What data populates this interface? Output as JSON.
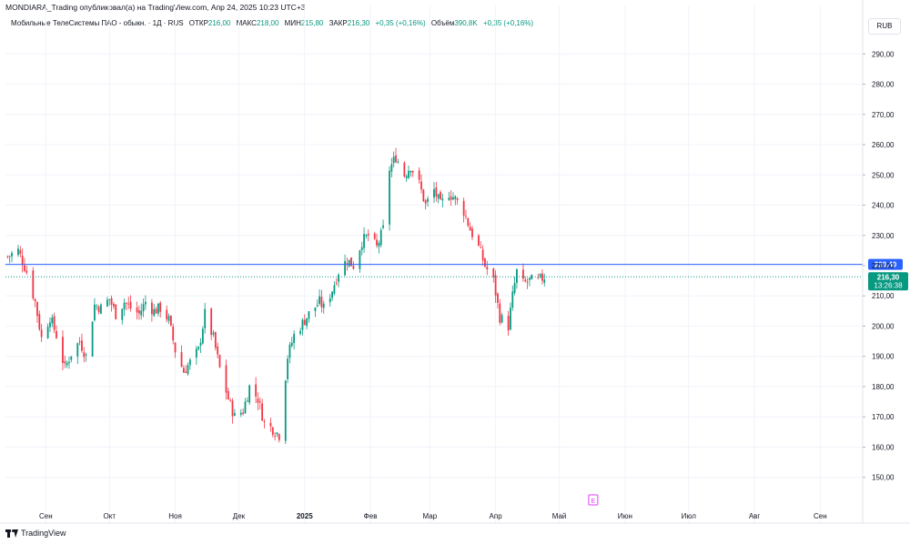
{
  "header": {
    "publisher_line": "MONDIARA_Trading опубликовал(а) на TradingView.com, Апр 24, 2025 10:23 UTC+3"
  },
  "legend": {
    "symbol": "Мобильные ТелеСистемы ПАО - обыкн. · 1Д · RUS",
    "open_label": "ОТКР",
    "open_value": "216,00",
    "high_label": "МАКС",
    "high_value": "218,00",
    "low_label": "МИН",
    "low_value": "215,80",
    "close_label": "ЗАКР",
    "close_value": "216,30",
    "change": "+0,35 (+0,16%)",
    "volume_label": "Объём",
    "volume_value": "390,8K",
    "volume_change": "+0,35 (+0,16%)"
  },
  "currency": "RUB",
  "footer": {
    "brand": "TradingView"
  },
  "colors": {
    "up": "#089981",
    "down": "#f23645",
    "hline": "#2962ff",
    "last_price": "#089981",
    "grid": "#f0f3fa",
    "event_marker": "#e040fb"
  },
  "chart_data": {
    "type": "candlestick",
    "ylim": [
      143,
      297
    ],
    "y_ticks": [
      150,
      160,
      170,
      180,
      190,
      200,
      210,
      220,
      230,
      240,
      250,
      260,
      270,
      280,
      290
    ],
    "y_tick_labels": [
      "150,00",
      "160,00",
      "170,00",
      "180,00",
      "190,00",
      "200,00",
      "210,00",
      "220,00",
      "230,00",
      "240,00",
      "250,00",
      "260,00",
      "270,00",
      "280,00",
      "290,00"
    ],
    "x_labels": [
      {
        "label": "Сен",
        "date": "2024-09-01"
      },
      {
        "label": "Окт",
        "date": "2024-10-01"
      },
      {
        "label": "Ноя",
        "date": "2024-11-01"
      },
      {
        "label": "Дек",
        "date": "2024-12-01"
      },
      {
        "label": "2025",
        "date": "2025-01-01",
        "bold": true
      },
      {
        "label": "Фев",
        "date": "2025-02-01"
      },
      {
        "label": "Мар",
        "date": "2025-03-01"
      },
      {
        "label": "Апр",
        "date": "2025-04-01"
      },
      {
        "label": "Май",
        "date": "2025-05-01"
      },
      {
        "label": "Июн",
        "date": "2025-06-01"
      },
      {
        "label": "Июл",
        "date": "2025-07-01"
      },
      {
        "label": "Авг",
        "date": "2025-08-01"
      },
      {
        "label": "Сен",
        "date": "2025-09-01"
      }
    ],
    "date_range": [
      "2024-08-13",
      "2025-09-21"
    ],
    "horizontal_line": {
      "value": 220.4,
      "label": "220,40"
    },
    "last_price": {
      "value": 216.3,
      "label": "216,30",
      "countdown": "13:26:38"
    },
    "event_marker": {
      "label": "E",
      "date": "2025-05-17"
    },
    "close_path": [
      [
        "2024-08-14",
        223
      ],
      [
        "2024-08-19",
        225
      ],
      [
        "2024-08-23",
        218
      ],
      [
        "2024-08-27",
        208
      ],
      [
        "2024-08-30",
        196
      ],
      [
        "2024-09-03",
        203
      ],
      [
        "2024-09-06",
        197
      ],
      [
        "2024-09-10",
        186
      ],
      [
        "2024-09-13",
        191
      ],
      [
        "2024-09-17",
        195
      ],
      [
        "2024-09-20",
        190
      ],
      [
        "2024-09-24",
        207
      ],
      [
        "2024-09-27",
        206
      ],
      [
        "2024-10-01",
        209
      ],
      [
        "2024-10-04",
        204
      ],
      [
        "2024-10-08",
        208
      ],
      [
        "2024-10-11",
        206
      ],
      [
        "2024-10-15",
        204
      ],
      [
        "2024-10-18",
        208
      ],
      [
        "2024-10-22",
        205
      ],
      [
        "2024-10-25",
        206
      ],
      [
        "2024-10-29",
        202
      ],
      [
        "2024-11-01",
        192
      ],
      [
        "2024-11-05",
        185
      ],
      [
        "2024-11-08",
        188
      ],
      [
        "2024-11-12",
        192
      ],
      [
        "2024-11-15",
        204
      ],
      [
        "2024-11-19",
        196
      ],
      [
        "2024-11-22",
        186
      ],
      [
        "2024-11-26",
        176
      ],
      [
        "2024-11-29",
        170
      ],
      [
        "2024-12-03",
        172
      ],
      [
        "2024-12-06",
        180
      ],
      [
        "2024-12-10",
        176
      ],
      [
        "2024-12-13",
        168
      ],
      [
        "2024-12-17",
        166
      ],
      [
        "2024-12-20",
        164
      ],
      [
        "2024-12-24",
        190
      ],
      [
        "2024-12-27",
        197
      ],
      [
        "2025-01-03",
        204
      ],
      [
        "2025-01-08",
        208
      ],
      [
        "2025-01-10",
        206
      ],
      [
        "2025-01-14",
        212
      ],
      [
        "2025-01-17",
        218
      ],
      [
        "2025-01-21",
        222
      ],
      [
        "2025-01-24",
        220
      ],
      [
        "2025-01-28",
        228
      ],
      [
        "2025-01-31",
        230
      ],
      [
        "2025-02-04",
        226
      ],
      [
        "2025-02-07",
        232
      ],
      [
        "2025-02-10",
        252
      ],
      [
        "2025-02-13",
        256
      ],
      [
        "2025-02-17",
        250
      ],
      [
        "2025-02-20",
        253
      ],
      [
        "2025-02-24",
        247
      ],
      [
        "2025-02-27",
        240
      ],
      [
        "2025-03-03",
        245
      ],
      [
        "2025-03-06",
        240
      ],
      [
        "2025-03-10",
        244
      ],
      [
        "2025-03-13",
        242
      ],
      [
        "2025-03-17",
        238
      ],
      [
        "2025-03-20",
        232
      ],
      [
        "2025-03-24",
        226
      ],
      [
        "2025-03-27",
        220
      ],
      [
        "2025-03-31",
        215
      ],
      [
        "2025-04-03",
        203
      ],
      [
        "2025-04-07",
        200
      ],
      [
        "2025-04-09",
        210
      ],
      [
        "2025-04-11",
        218
      ],
      [
        "2025-04-14",
        214
      ],
      [
        "2025-04-17",
        215
      ],
      [
        "2025-04-21",
        215
      ],
      [
        "2025-04-24",
        216.3
      ]
    ]
  }
}
